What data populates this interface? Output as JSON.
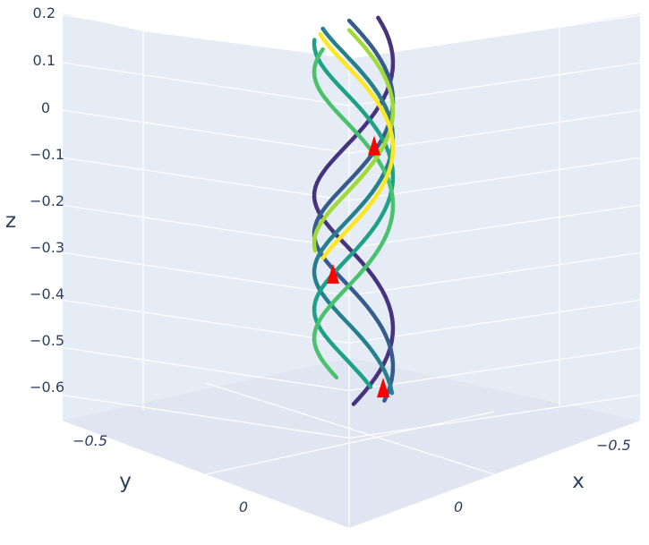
{
  "chart_data": {
    "type": "streamtube-3d",
    "title": "",
    "colorscale": "Viridis",
    "colors": {
      "pane_wall": "#e5ecf6",
      "pane_floor": "#dfe6f1",
      "grid": "#ffffff",
      "text": "#2a3f5f",
      "cone": "#ff0000"
    },
    "axes": {
      "x": {
        "title": "x",
        "tick_labels": [
          "−0.5",
          "0"
        ]
      },
      "y": {
        "title": "y",
        "tick_labels": [
          "−0.5",
          "0"
        ]
      },
      "z": {
        "title": "z",
        "range": [
          -0.65,
          0.2
        ],
        "tick_labels": [
          "0.2",
          "0.1",
          "0",
          "−0.1",
          "−0.2",
          "−0.3",
          "−0.4",
          "−0.5",
          "−0.6"
        ]
      }
    },
    "tubes": [
      {
        "color": "#46327e",
        "z_range": [
          -0.6,
          0.18
        ]
      },
      {
        "color": "#365c8d",
        "z_range": [
          -0.6,
          0.17
        ]
      },
      {
        "color": "#277f8e",
        "z_range": [
          -0.6,
          0.16
        ]
      },
      {
        "color": "#1fa187",
        "z_range": [
          -0.6,
          0.15
        ]
      },
      {
        "color": "#4ac16d",
        "z_range": [
          -0.58,
          0.14
        ]
      },
      {
        "color": "#a0da39",
        "z_range": [
          -0.3,
          0.15
        ]
      },
      {
        "color": "#fde725",
        "z_range": [
          -0.3,
          0.15
        ]
      }
    ],
    "cones": [
      {
        "z": -0.08
      },
      {
        "z": -0.35
      },
      {
        "z": -0.59
      }
    ]
  }
}
